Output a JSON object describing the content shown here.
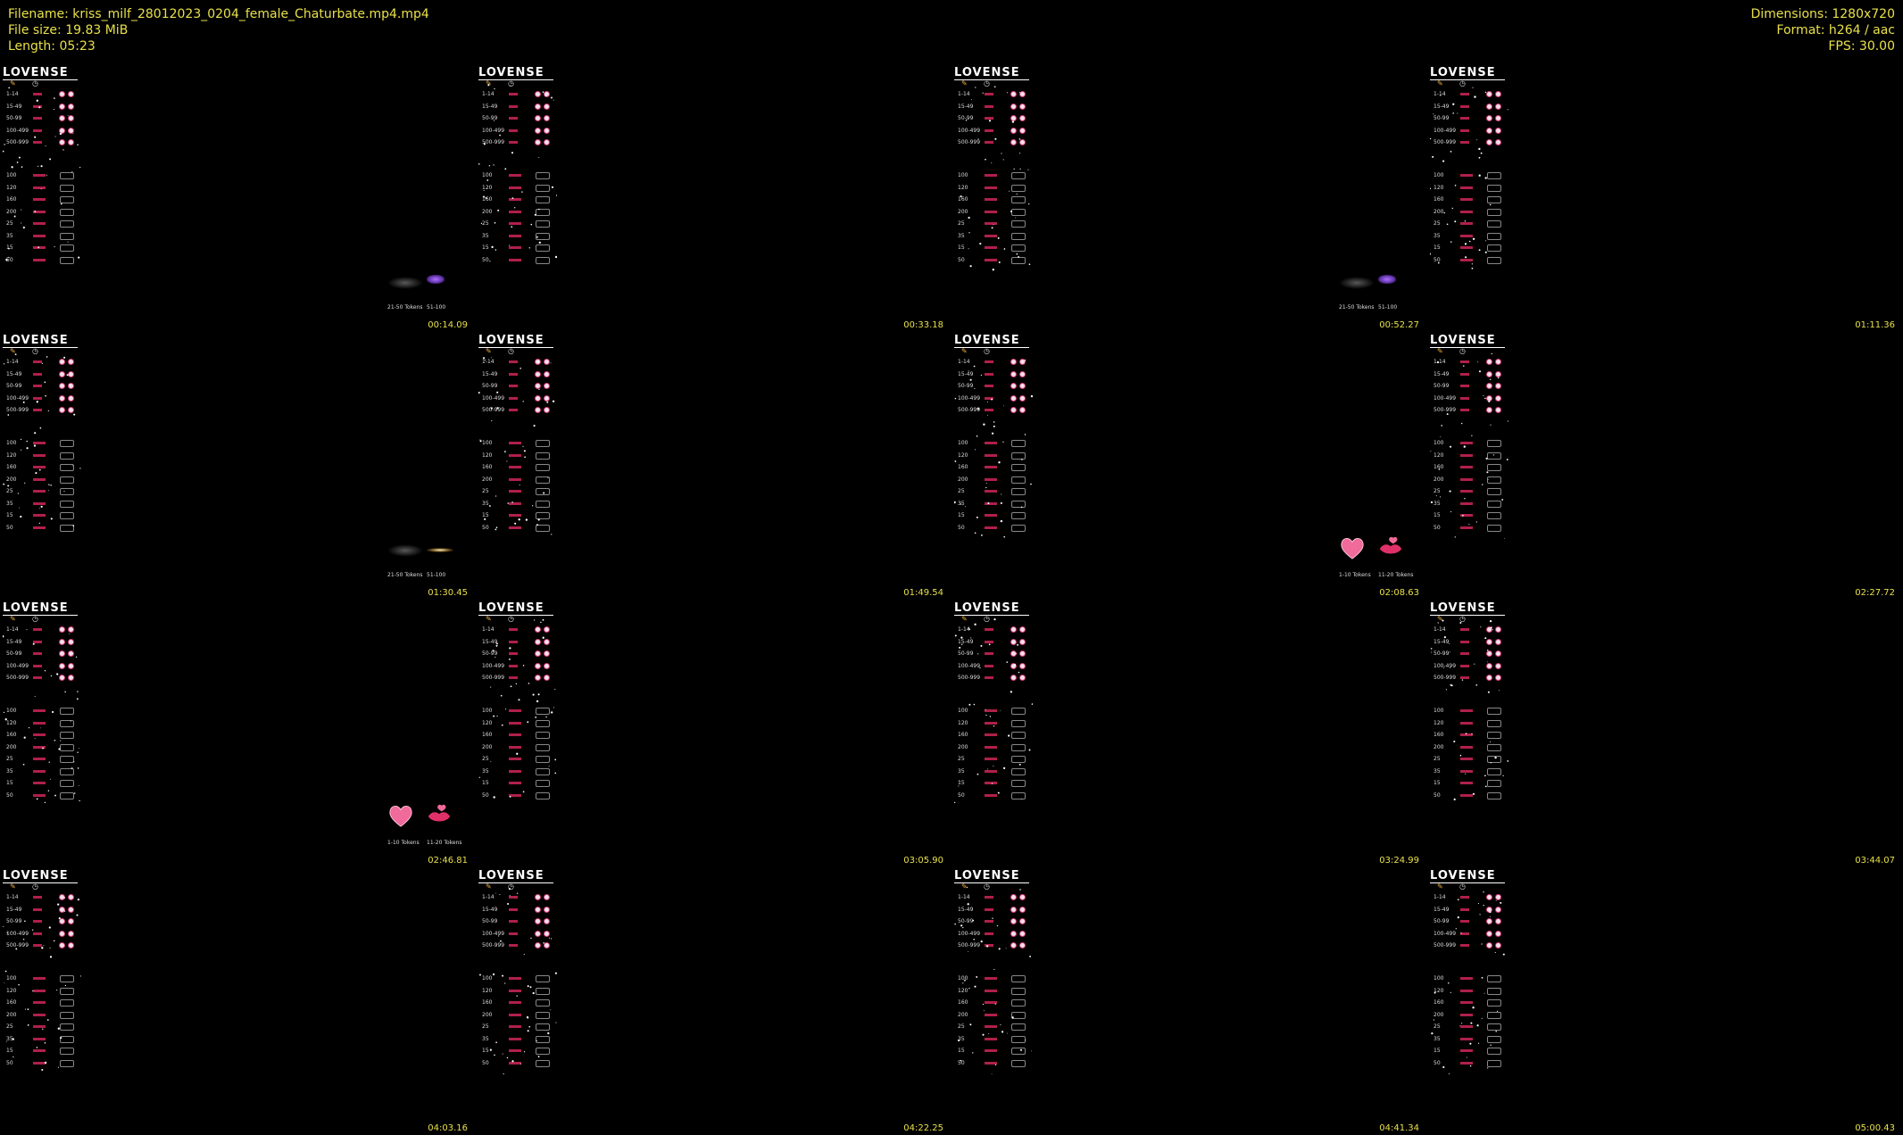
{
  "header": {
    "filename_line": "Filename: kriss_milf_28012023_0204_female_Chaturbate.mp4.mp4",
    "filesize_line": "File size: 19.83 MiB",
    "length_line": "Length: 05:23",
    "dimensions_line": "Dimensions: 1280x720",
    "format_line": "Format: h264 / aac",
    "fps_line": "FPS: 30.00"
  },
  "panel": {
    "logo": "LOVENSE",
    "tip_rows": [
      "1-14",
      "15-49",
      "50-99",
      "100-499",
      "500-999"
    ],
    "pattern_rows": [
      "100",
      "120",
      "160",
      "200",
      "25",
      "35",
      "15",
      "50"
    ]
  },
  "tiles": [
    {
      "timestamp": "00:14.09",
      "overlay": "smear",
      "labels": [
        "21-50 Tokens",
        "51-100"
      ]
    },
    {
      "timestamp": "00:33.18",
      "overlay": "none",
      "labels": []
    },
    {
      "timestamp": "00:52.27",
      "overlay": "smear",
      "labels": [
        "21-50 Tokens",
        "51-100"
      ]
    },
    {
      "timestamp": "01:11.36",
      "overlay": "none",
      "labels": []
    },
    {
      "timestamp": "01:30.45",
      "overlay": "glow",
      "labels": [
        "21-50 Tokens",
        "51-100"
      ]
    },
    {
      "timestamp": "01:49.54",
      "overlay": "none",
      "labels": []
    },
    {
      "timestamp": "02:08.63",
      "overlay": "heart",
      "labels": [
        "1-10 Tokens",
        "11-20 Tokens"
      ]
    },
    {
      "timestamp": "02:27.72",
      "overlay": "none",
      "labels": []
    },
    {
      "timestamp": "02:46.81",
      "overlay": "heart",
      "labels": [
        "1-10 Tokens",
        "11-20 Tokens"
      ]
    },
    {
      "timestamp": "03:05.90",
      "overlay": "none",
      "labels": []
    },
    {
      "timestamp": "03:24.99",
      "overlay": "none",
      "labels": []
    },
    {
      "timestamp": "03:44.07",
      "overlay": "none",
      "labels": []
    },
    {
      "timestamp": "04:03.16",
      "overlay": "none",
      "labels": []
    },
    {
      "timestamp": "04:22.25",
      "overlay": "none",
      "labels": []
    },
    {
      "timestamp": "04:41.34",
      "overlay": "none",
      "labels": []
    },
    {
      "timestamp": "05:00.43",
      "overlay": "none",
      "labels": []
    }
  ],
  "colors": {
    "accent": "#e8e04a",
    "pink": "#d23a78",
    "background": "#000000"
  }
}
